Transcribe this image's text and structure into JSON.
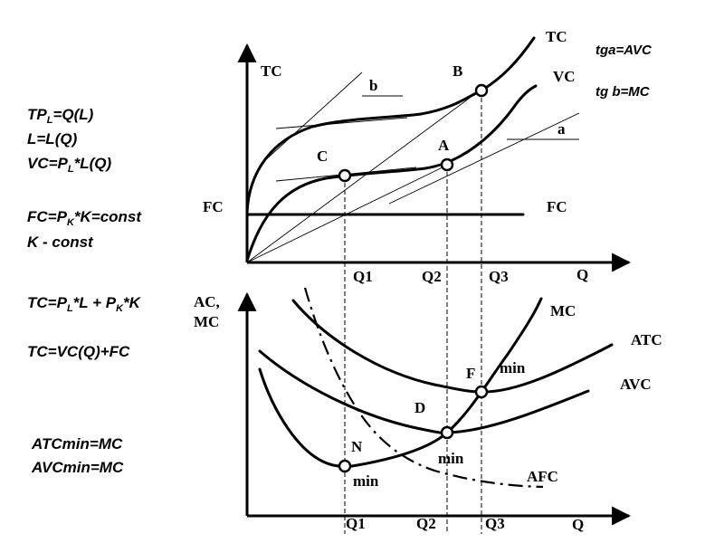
{
  "top_panel": {
    "y_label": "TC",
    "x_label": "Q",
    "fc_left": "FC",
    "fc_right": "FC",
    "tc_curve": "TC",
    "vc_curve": "VC",
    "tangent_a": "a",
    "tangent_b": "b",
    "point_a": "A",
    "point_b": "B",
    "point_c": "C",
    "tg_a": "tga=AVC",
    "tg_b": "tg b=MC",
    "ticks": [
      "Q1",
      "Q2",
      "Q3"
    ]
  },
  "bottom_panel": {
    "y_label_1": "AC,",
    "y_label_2": "MC",
    "x_label": "Q",
    "mc_curve": "MC",
    "atc_curve": "ATC",
    "avc_curve": "AVC",
    "afc_curve": "AFC",
    "point_f": "F",
    "point_d": "D",
    "point_n": "N",
    "min_f": "min",
    "min_d": "min",
    "min_n": "min",
    "ticks": [
      "Q1",
      "Q2",
      "Q3"
    ]
  },
  "formulas": {
    "f1_main": "TP",
    "f1_sub": "L",
    "f1_rest": "=Q(L)",
    "f2": "L=L(Q)",
    "f3_main": "VC=P",
    "f3_sub": "L",
    "f3_rest": "*L(Q)",
    "f4_main": "FC=P",
    "f4_sub": "K",
    "f4_rest": "*K=const",
    "f5": "K - const",
    "f6_a": "TC=P",
    "f6_sub1": "L",
    "f6_b": "*L + P",
    "f6_sub2": "K",
    "f6_c": "*K",
    "f7": "TC=VC(Q)+FC",
    "f8": "ATCmin=MC",
    "f9": "AVCmin=MC"
  },
  "colors": {
    "ink": "#000000",
    "background": "#ffffff"
  }
}
